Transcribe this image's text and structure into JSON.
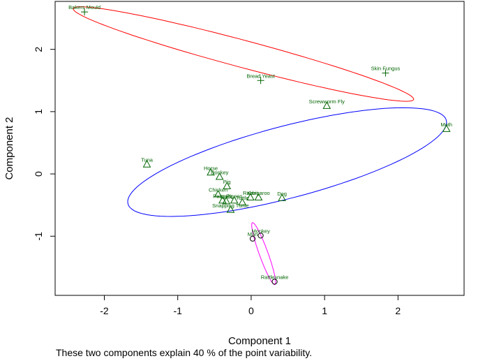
{
  "chart_data": {
    "type": "scatter",
    "title": "",
    "xlabel": "Component 1",
    "ylabel": "Component 2",
    "xlim": [
      -2.67,
      2.9
    ],
    "ylim": [
      -1.95,
      2.77
    ],
    "xticks": [
      -2,
      -1,
      0,
      1,
      2
    ],
    "yticks": [
      -1,
      0,
      1,
      2
    ],
    "colors": {
      "cluster1": "#ff0000",
      "cluster2": "#0000ff",
      "cluster3": "#ff00ff",
      "points": "#006400",
      "axis": "#000000"
    },
    "clusters": [
      {
        "id": 1,
        "marker": "plus",
        "color_key": "cluster1",
        "ellipse": {
          "cx": -0.105,
          "cy": 1.925,
          "rx": 2.43,
          "ry": 0.215,
          "angle_deg": -17.5
        }
      },
      {
        "id": 2,
        "marker": "triangle",
        "color_key": "cluster2",
        "ellipse": {
          "cx": 0.49,
          "cy": 0.19,
          "rx": 2.27,
          "ry": 0.57,
          "angle_deg": 17.5
        }
      },
      {
        "id": 3,
        "marker": "circle",
        "color_key": "cluster3",
        "ellipse": {
          "cx": 0.17,
          "cy": -1.28,
          "rx": 0.52,
          "ry": 0.06,
          "angle_deg": -73.0
        }
      }
    ],
    "points": [
      {
        "label": "Bakers Mould",
        "x": -2.27,
        "y": 2.6,
        "cluster": 1
      },
      {
        "label": "Bread Yeast",
        "x": 0.13,
        "y": 1.5,
        "cluster": 1
      },
      {
        "label": "Skin Fungus",
        "x": 1.83,
        "y": 1.62,
        "cluster": 1
      },
      {
        "label": "Screwworm Fly",
        "x": 1.03,
        "y": 1.09,
        "cluster": 2
      },
      {
        "label": "Moth",
        "x": 2.66,
        "y": 0.72,
        "cluster": 2
      },
      {
        "label": "Tuna",
        "x": -1.42,
        "y": 0.15,
        "cluster": 2
      },
      {
        "label": "Horse",
        "x": -0.55,
        "y": 0.02,
        "cluster": 2
      },
      {
        "label": "Donkey",
        "x": -0.43,
        "y": -0.05,
        "cluster": 2
      },
      {
        "label": "Pig",
        "x": -0.33,
        "y": -0.2,
        "cluster": 2
      },
      {
        "label": "Chicken",
        "x": -0.45,
        "y": -0.33,
        "cluster": 2
      },
      {
        "label": "Penguin",
        "x": -0.39,
        "y": -0.43,
        "cluster": 2
      },
      {
        "label": "Duck",
        "x": -0.34,
        "y": -0.44,
        "cluster": 2
      },
      {
        "label": "Pigeon",
        "x": -0.23,
        "y": -0.43,
        "cluster": 2
      },
      {
        "label": "Turtle",
        "x": -0.12,
        "y": -0.46,
        "cluster": 2
      },
      {
        "label": "Snapping Turtle",
        "x": -0.28,
        "y": -0.58,
        "cluster": 2
      },
      {
        "label": "Rabbit",
        "x": -0.01,
        "y": -0.38,
        "cluster": 2
      },
      {
        "label": "Kangaroo",
        "x": 0.1,
        "y": -0.38,
        "cluster": 2
      },
      {
        "label": "Dog",
        "x": 0.42,
        "y": -0.39,
        "cluster": 2
      },
      {
        "label": "Monkey",
        "x": 0.13,
        "y": -0.99,
        "cluster": 3
      },
      {
        "label": "Man",
        "x": 0.02,
        "y": -1.04,
        "cluster": 3
      },
      {
        "label": "Rattlesnake",
        "x": 0.32,
        "y": -1.73,
        "cluster": 3
      }
    ]
  },
  "caption": "These two components explain 40 % of the point variability."
}
